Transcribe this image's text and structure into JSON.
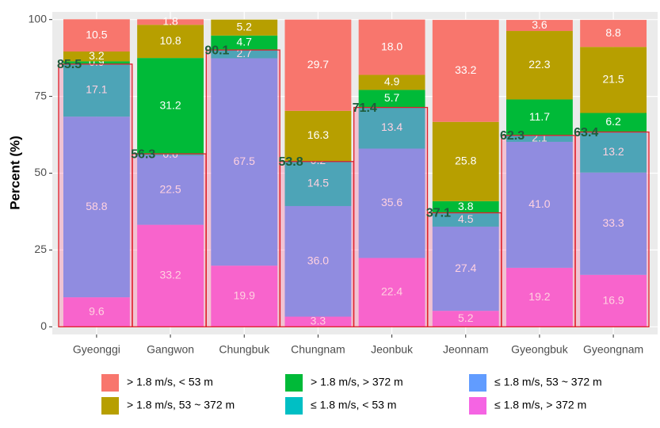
{
  "chart_data": {
    "type": "stacked_bar",
    "ylabel": "Percent (%)",
    "categories": [
      "Gyeonggi",
      "Gangwon",
      "Chungbuk",
      "Chungnam",
      "Jeonbuk",
      "Jeonnam",
      "Gyeongbuk",
      "Gyeongnam"
    ],
    "series": [
      {
        "name": "≤ 1.8 m/s, > 372 m",
        "color": "#F564E3",
        "values": [
          9.6,
          33.2,
          19.9,
          3.3,
          22.4,
          5.2,
          19.2,
          16.9
        ],
        "value_labels": [
          "9.6",
          "33.2",
          "19.9",
          "3.3",
          "22.4",
          "5.2",
          "19.2",
          "16.9"
        ]
      },
      {
        "name": "≤ 1.8 m/s, 53 ~ 372 m",
        "color": "#619CFF",
        "values": [
          58.8,
          22.5,
          67.5,
          36.0,
          35.6,
          27.4,
          41.0,
          33.3
        ],
        "value_labels": [
          "58.8",
          "22.5",
          "67.5",
          "36.0",
          "35.6",
          "27.4",
          "41.0",
          "33.3"
        ]
      },
      {
        "name": "≤ 1.8 m/s, < 53 m",
        "color": "#00BFC4",
        "values": [
          17.1,
          0.6,
          2.7,
          14.5,
          13.4,
          4.5,
          2.1,
          13.2
        ],
        "value_labels": [
          "17.1",
          "0.6",
          "2.7",
          "14.5",
          "13.4",
          "4.5",
          "2.1",
          "13.2"
        ]
      },
      {
        "name": "> 1.8 m/s, > 372 m",
        "color": "#00BA38",
        "values": [
          0.9,
          31.2,
          4.7,
          0.2,
          5.7,
          3.8,
          11.7,
          6.2
        ],
        "value_labels": [
          "0.9",
          "31.2",
          "4.7",
          "0.2",
          "5.7",
          "3.8",
          "11.7",
          "6.2"
        ]
      },
      {
        "name": "> 1.8 m/s, 53 ~ 372 m",
        "color": "#B79F00",
        "values": [
          3.2,
          10.8,
          5.2,
          16.3,
          4.9,
          25.8,
          22.3,
          21.5
        ],
        "value_labels": [
          "3.2",
          "10.8",
          "5.2",
          "16.3",
          "4.9",
          "25.8",
          "22.3",
          "21.5"
        ]
      },
      {
        "name": "> 1.8 m/s, < 53 m",
        "color": "#F8766D",
        "values": [
          10.5,
          1.8,
          null,
          29.7,
          18.0,
          33.2,
          3.6,
          8.8
        ],
        "value_labels": [
          "10.5",
          "1.8",
          null,
          "29.7",
          "18.0",
          "33.2",
          "3.6",
          "8.8"
        ]
      }
    ],
    "highlight": {
      "values": [
        85.5,
        56.3,
        90.1,
        53.8,
        71.4,
        37.1,
        62.3,
        63.4
      ],
      "color": "#1E5C3A"
    },
    "legend_order": [
      5,
      4,
      3,
      2,
      1,
      0
    ],
    "ylim": [
      -2.5,
      102.5
    ],
    "yticks": [
      0,
      25,
      50,
      75,
      100
    ],
    "grid": true
  }
}
